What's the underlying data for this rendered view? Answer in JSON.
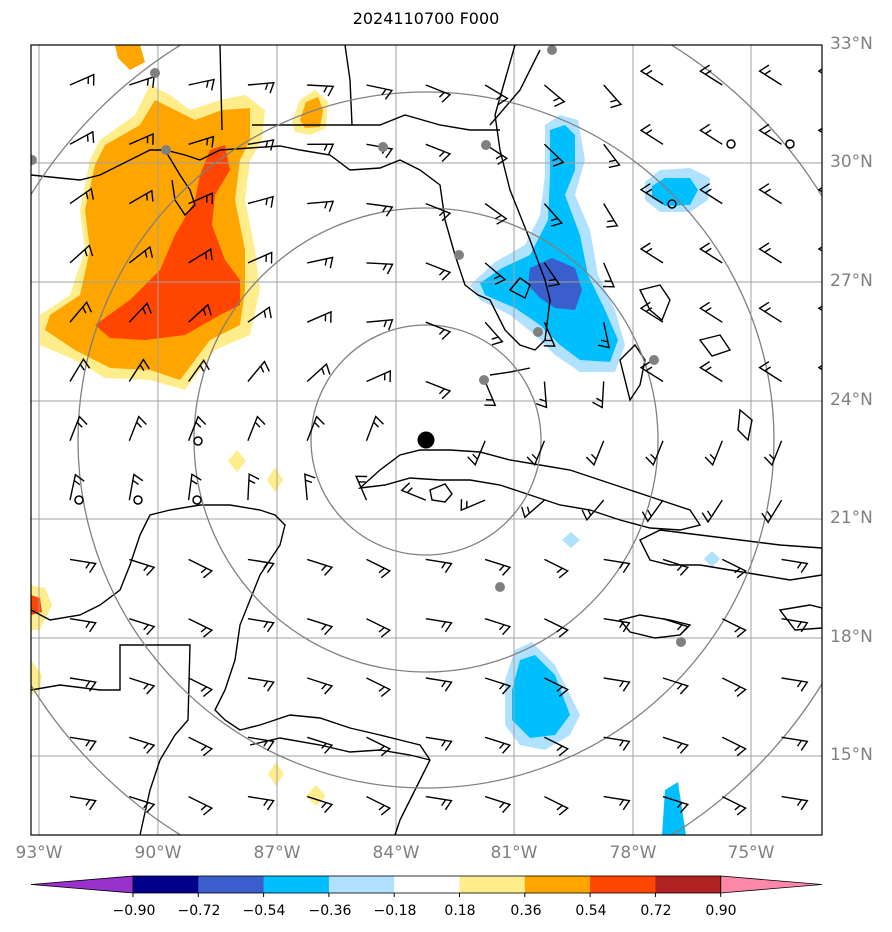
{
  "title": "2024110700 F000",
  "latitude_labels": [
    "33°N",
    "30°N",
    "27°N",
    "24°N",
    "21°N",
    "18°N",
    "15°N"
  ],
  "longitude_labels": [
    "93°W",
    "90°W",
    "87°W",
    "84°W",
    "81°W",
    "78°W",
    "75°W"
  ],
  "colorbar": {
    "ticks": [
      "−0.90",
      "−0.72",
      "−0.54",
      "−0.36",
      "−0.18",
      "0.18",
      "0.36",
      "0.54",
      "0.72",
      "0.90"
    ],
    "colors": [
      "#9932CC",
      "#00008B",
      "#3A5FCD",
      "#00BFFF",
      "#B0E2FF",
      "#FFFFFF",
      "#FFEC8B",
      "#FFA500",
      "#FF4500",
      "#B22222",
      "#FF88AA"
    ]
  },
  "storm_center": {
    "lat": "23.1°N",
    "lon": "82.7°W"
  },
  "station_markers": "gray dots and open circles",
  "range_rings": 4,
  "colors": {
    "frame": "#000000",
    "grid": "#A0A0A0",
    "ring": "#808080",
    "coast": "#000000",
    "station": "#808080"
  }
}
